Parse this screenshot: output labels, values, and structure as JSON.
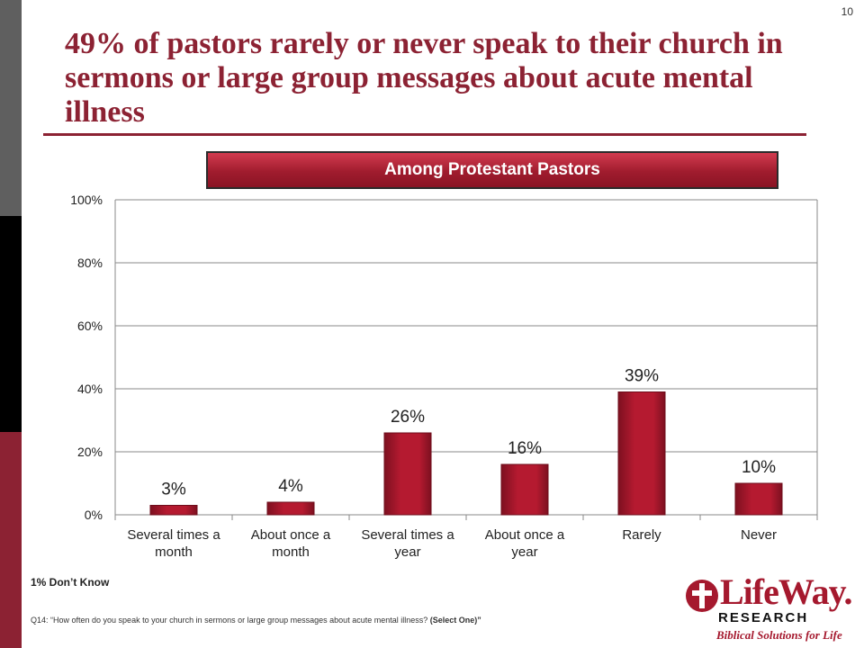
{
  "page_number": "10",
  "title": "49% of pastors rarely or never speak to their church in sermons or large group messages about acute mental illness",
  "banner": "Among Protestant Pastors",
  "footnote_dont_know": "1% Don’t Know",
  "footnote_question": "Q14: “How often do you speak to your church in sermons or large group messages about acute mental illness?",
  "footnote_select": "(Select One)”",
  "logo": {
    "wordmark": "LifeWay.",
    "research": "RESEARCH",
    "tagline": "Biblical Solutions for Life"
  },
  "colors": {
    "brand": "#8c2233",
    "bar": "#b51a30",
    "bar_dark": "#7d1020"
  },
  "chart_data": {
    "type": "bar",
    "categories": [
      "Several times a month",
      "About once a month",
      "Several times a year",
      "About once a year",
      "Rarely",
      "Never"
    ],
    "values": [
      3,
      4,
      26,
      16,
      39,
      10
    ],
    "data_labels": [
      "3%",
      "4%",
      "26%",
      "16%",
      "39%",
      "10%"
    ],
    "ylim": [
      0,
      100
    ],
    "yticks": [
      "0%",
      "20%",
      "40%",
      "60%",
      "80%",
      "100%"
    ],
    "grid": true
  }
}
